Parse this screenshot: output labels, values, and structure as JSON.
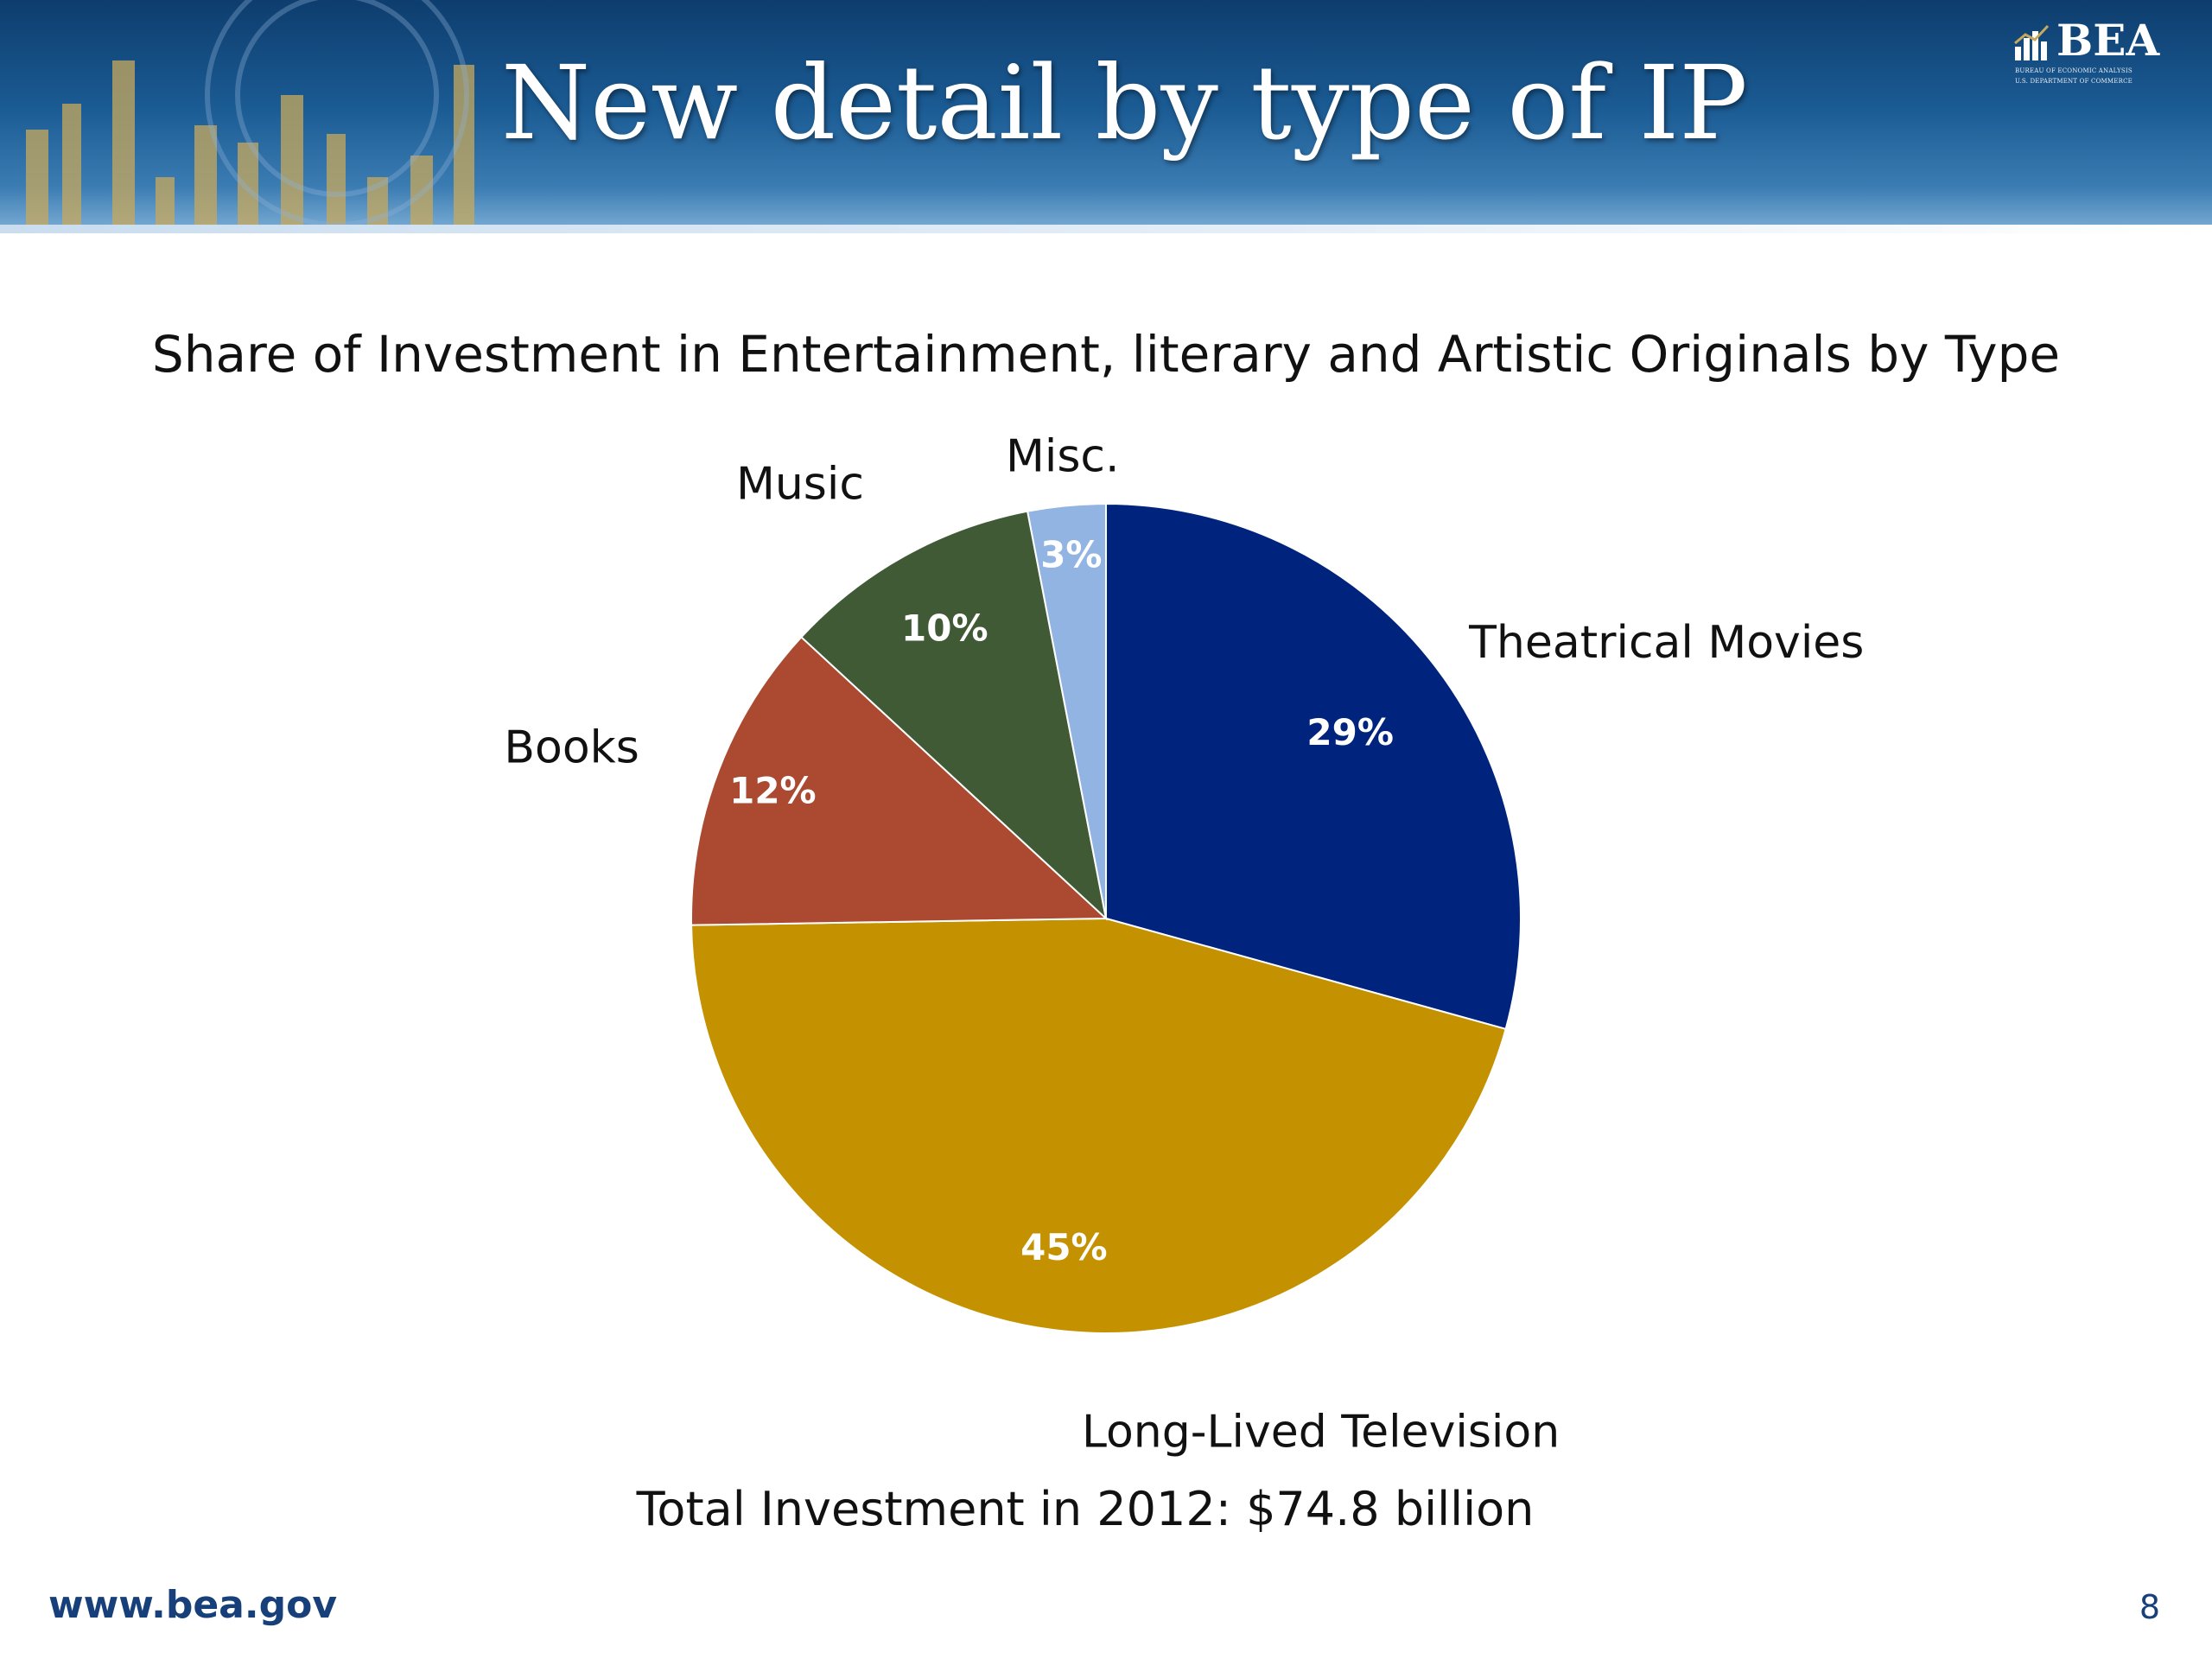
{
  "slide": {
    "title": "New detail by type of IP",
    "logo": {
      "text": "BEA",
      "line1": "BUREAU OF ECONOMIC ANALYSIS",
      "line2": "U.S. DEPARTMENT OF COMMERCE"
    },
    "footer_url": "www.bea.gov",
    "page_number": "8"
  },
  "chart_data": {
    "type": "pie",
    "title": "Share of Investment in Entertainment, literary and Artistic Originals by Type",
    "categories": [
      "Theatrical Movies",
      "Long-Lived Television",
      "Books",
      "Music",
      "Misc."
    ],
    "values": [
      29,
      45,
      12,
      10,
      3
    ],
    "data_labels": [
      "29%",
      "45%",
      "12%",
      "10%",
      "3%"
    ],
    "colors": [
      "#00247d",
      "#c49100",
      "#ab4a30",
      "#405a36",
      "#92b4e2"
    ],
    "start_angle": "12 o'clock",
    "direction": "clockwise",
    "footnote": "Total Investment in 2012: $74.8 billion"
  }
}
